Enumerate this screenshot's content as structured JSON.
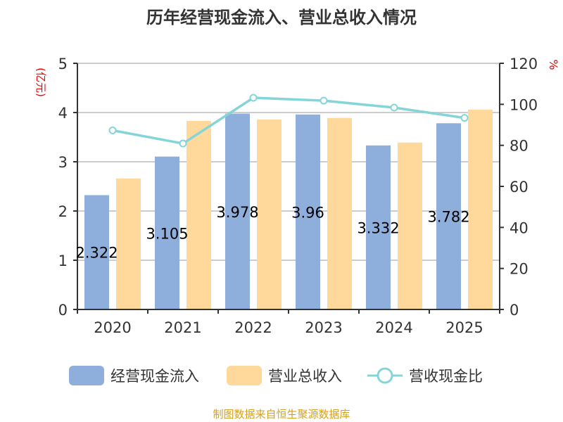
{
  "chart_data": {
    "type": "bar",
    "title": "历年经营现金流入、营业总收入情况",
    "categories": [
      "2020",
      "2021",
      "2022",
      "2023",
      "2024",
      "2025"
    ],
    "left_axis": {
      "label": "(亿元)",
      "range": [
        0,
        5
      ],
      "ticks": [
        "0",
        "1",
        "2",
        "3",
        "4",
        "5"
      ]
    },
    "right_axis": {
      "label": "%",
      "range": [
        0,
        120
      ],
      "ticks": [
        "0",
        "20",
        "40",
        "60",
        "80",
        "100",
        "120"
      ]
    },
    "grid": true,
    "legend_position": "bottom",
    "series": [
      {
        "name": "经营现金流入",
        "type": "bar",
        "axis": "left",
        "color": "#8eaedb",
        "values": [
          2.322,
          3.105,
          3.978,
          3.96,
          3.332,
          3.782
        ],
        "labels": [
          "2.322",
          "3.105",
          "3.978",
          "3.96",
          "3.332",
          "3.782"
        ]
      },
      {
        "name": "营业总收入",
        "type": "bar",
        "axis": "left",
        "color": "#ffd99b",
        "values": [
          2.66,
          3.83,
          3.86,
          3.89,
          3.39,
          4.06
        ]
      },
      {
        "name": "营收现金比",
        "type": "line",
        "axis": "right",
        "color": "#84d5d8",
        "values": [
          87.3,
          80.9,
          103.2,
          101.8,
          98.4,
          93.4
        ]
      }
    ],
    "source": "制图数据来自恒生聚源数据库"
  }
}
